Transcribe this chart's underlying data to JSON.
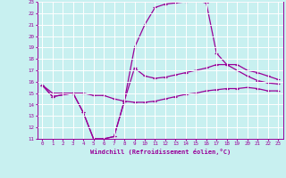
{
  "xlabel": "Windchill (Refroidissement éolien,°C)",
  "bg_color": "#c8f0f0",
  "line_color": "#990099",
  "grid_color": "#ffffff",
  "xlim": [
    -0.5,
    23.5
  ],
  "ylim": [
    11,
    23
  ],
  "xticks": [
    0,
    1,
    2,
    3,
    4,
    5,
    6,
    7,
    8,
    9,
    10,
    11,
    12,
    13,
    14,
    15,
    16,
    17,
    18,
    19,
    20,
    21,
    22,
    23
  ],
  "yticks": [
    11,
    12,
    13,
    14,
    15,
    16,
    17,
    18,
    19,
    20,
    21,
    22,
    23
  ],
  "line1_x": [
    0,
    1,
    3,
    4,
    5,
    6,
    7,
    8,
    9,
    10,
    11,
    12,
    13,
    14,
    15,
    16,
    17,
    18,
    19,
    20,
    21,
    22,
    23
  ],
  "line1_y": [
    15.7,
    14.7,
    15.0,
    13.3,
    11.0,
    11.0,
    11.2,
    14.3,
    19.0,
    21.0,
    22.5,
    22.8,
    22.9,
    23.0,
    23.1,
    22.9,
    18.5,
    17.5,
    17.0,
    16.5,
    16.1,
    15.9,
    15.8
  ],
  "line2_x": [
    0,
    1,
    3,
    4,
    5,
    6,
    7,
    8,
    9,
    10,
    11,
    12,
    13,
    14,
    15,
    16,
    17,
    18,
    19,
    20,
    21,
    22,
    23
  ],
  "line2_y": [
    15.7,
    14.7,
    15.0,
    13.3,
    11.0,
    11.0,
    11.2,
    14.3,
    17.2,
    16.5,
    16.3,
    16.4,
    16.6,
    16.8,
    17.0,
    17.2,
    17.5,
    17.5,
    17.5,
    17.0,
    16.8,
    16.5,
    16.2
  ],
  "line3_x": [
    0,
    1,
    2,
    3,
    4,
    5,
    6,
    7,
    8,
    9,
    10,
    11,
    12,
    13,
    14,
    15,
    16,
    17,
    18,
    19,
    20,
    21,
    22,
    23
  ],
  "line3_y": [
    15.7,
    15.0,
    15.0,
    15.0,
    15.0,
    14.8,
    14.8,
    14.5,
    14.3,
    14.2,
    14.2,
    14.3,
    14.5,
    14.7,
    14.9,
    15.0,
    15.2,
    15.3,
    15.4,
    15.4,
    15.5,
    15.4,
    15.2,
    15.2
  ]
}
